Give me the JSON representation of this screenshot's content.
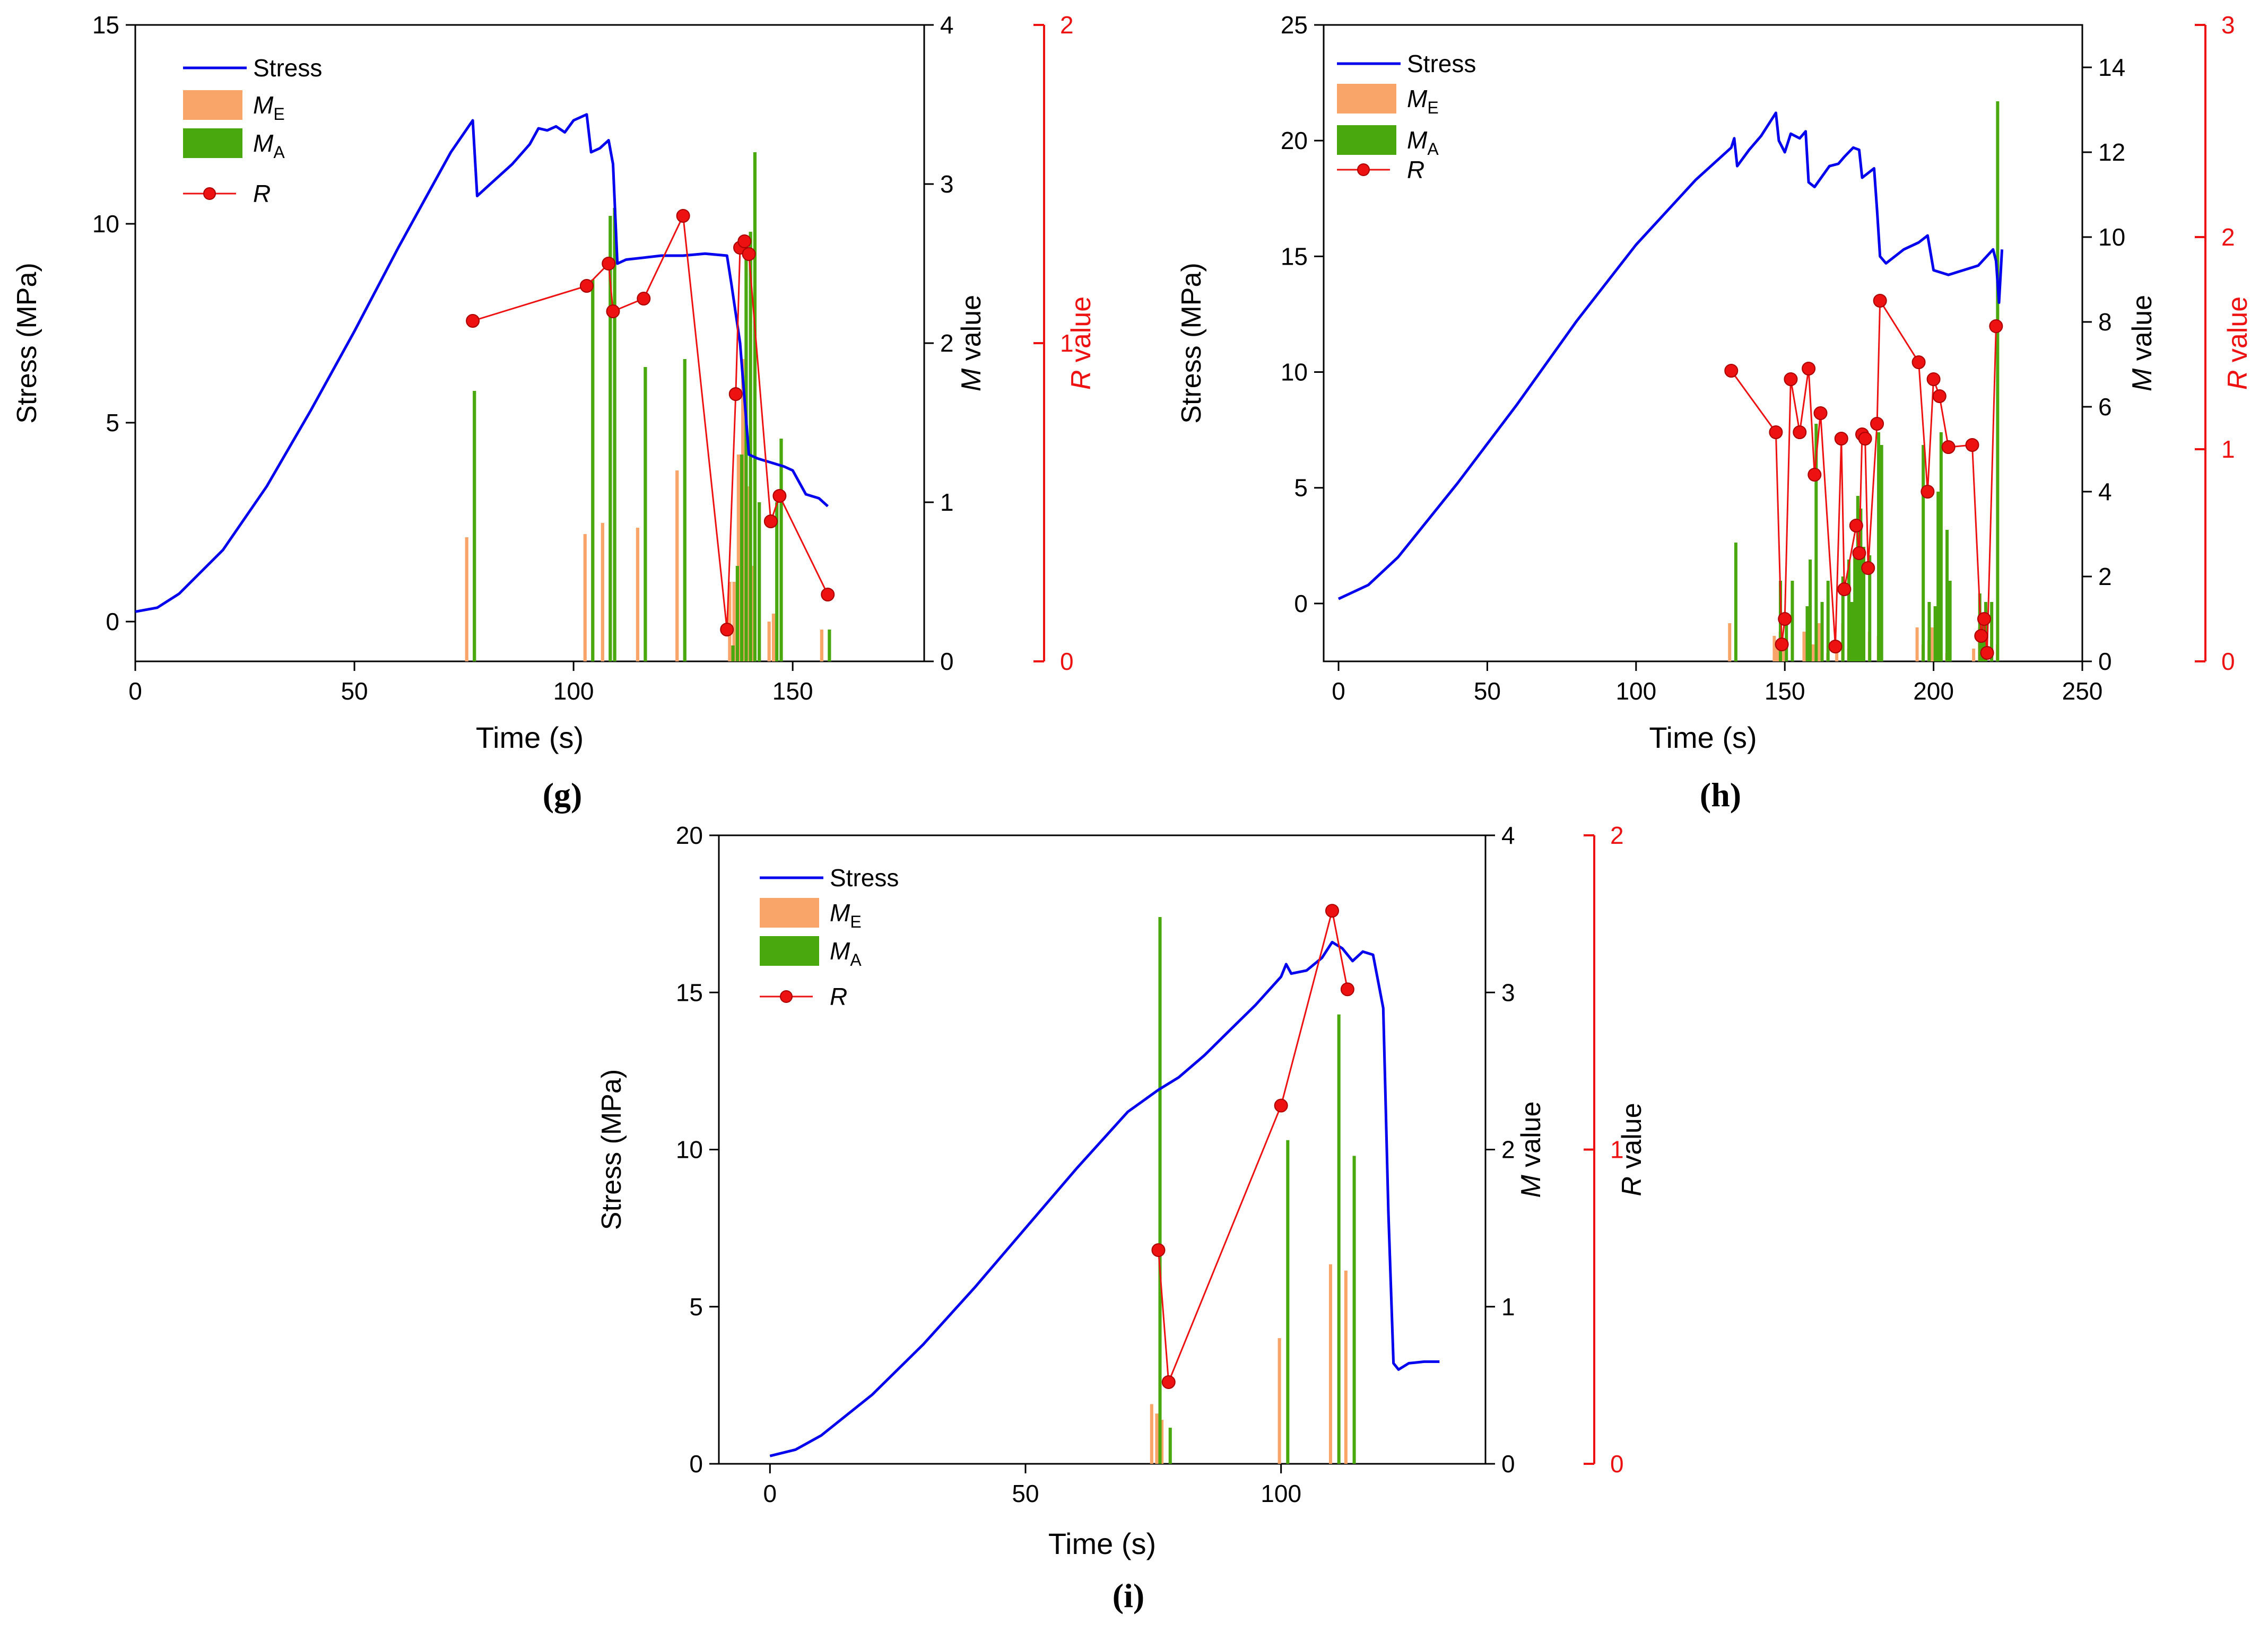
{
  "colors": {
    "stress": "#0000ee",
    "me": "#f9a56a",
    "ma": "#4aa80f",
    "r": "#ee1111",
    "axis": "#000000"
  },
  "chart_data": [
    {
      "type": "bar",
      "panel_label": "(g)",
      "xlabel": "Time (s)",
      "ylabel_left": "Stress (MPa)",
      "ylabel_m_prefix": "M",
      "ylabel_m_suffix": " value",
      "ylabel_r_prefix": "R",
      "ylabel_r_suffix": " value",
      "xlim": [
        0,
        180
      ],
      "ylim_stress": [
        -1,
        15
      ],
      "ylim_m": [
        0,
        4
      ],
      "ylim_r": [
        0,
        2
      ],
      "xticks": [
        0,
        50,
        100,
        150
      ],
      "yticks_stress": [
        0,
        5,
        10,
        15
      ],
      "yticks_m": [
        0,
        1,
        2,
        3,
        4
      ],
      "yticks_r": [
        0,
        1,
        2
      ],
      "legend": {
        "stress": "Stress",
        "me_main": "M",
        "me_sub": "E",
        "ma_main": "M",
        "ma_sub": "A",
        "r": "R"
      },
      "stress": [
        [
          0,
          0.25
        ],
        [
          5,
          0.35
        ],
        [
          10,
          0.7
        ],
        [
          20,
          1.8
        ],
        [
          30,
          3.4
        ],
        [
          40,
          5.3
        ],
        [
          50,
          7.3
        ],
        [
          60,
          9.4
        ],
        [
          66,
          10.6
        ],
        [
          72,
          11.8
        ],
        [
          77,
          12.6
        ],
        [
          78,
          10.7
        ],
        [
          82,
          11.1
        ],
        [
          86,
          11.5
        ],
        [
          90,
          12.0
        ],
        [
          92,
          12.4
        ],
        [
          94,
          12.35
        ],
        [
          96,
          12.45
        ],
        [
          98,
          12.3
        ],
        [
          100,
          12.6
        ],
        [
          102,
          12.7
        ],
        [
          103,
          12.75
        ],
        [
          104,
          11.8
        ],
        [
          106,
          11.9
        ],
        [
          108,
          12.1
        ],
        [
          109,
          11.5
        ],
        [
          110,
          9.0
        ],
        [
          112,
          9.1
        ],
        [
          116,
          9.15
        ],
        [
          120,
          9.2
        ],
        [
          125,
          9.2
        ],
        [
          130,
          9.25
        ],
        [
          135,
          9.2
        ],
        [
          136,
          8.5
        ],
        [
          138,
          7.0
        ],
        [
          140,
          4.2
        ],
        [
          142,
          4.1
        ],
        [
          145,
          4.0
        ],
        [
          148,
          3.9
        ],
        [
          150,
          3.8
        ],
        [
          153,
          3.2
        ],
        [
          156,
          3.1
        ],
        [
          158,
          2.9
        ]
      ],
      "me": [
        [
          76,
          0.78
        ],
        [
          103,
          0.8
        ],
        [
          107,
          0.87
        ],
        [
          115,
          0.84
        ],
        [
          124,
          1.2
        ],
        [
          136,
          0.5
        ],
        [
          137,
          0.5
        ],
        [
          138,
          1.3
        ],
        [
          139,
          1.9
        ],
        [
          140,
          1.1
        ],
        [
          141,
          0.6
        ],
        [
          145,
          0.25
        ],
        [
          146,
          0.3
        ],
        [
          157,
          0.2
        ]
      ],
      "ma": [
        [
          77,
          1.7
        ],
        [
          104,
          2.4
        ],
        [
          108,
          2.8
        ],
        [
          109,
          2.85
        ],
        [
          116,
          1.85
        ],
        [
          125,
          1.9
        ],
        [
          136,
          0.1
        ],
        [
          137,
          0.6
        ],
        [
          138,
          1.3
        ],
        [
          139,
          2.6
        ],
        [
          140,
          2.7
        ],
        [
          141,
          3.2
        ],
        [
          142,
          1.0
        ],
        [
          146,
          1.0
        ],
        [
          147,
          1.4
        ],
        [
          158,
          0.2
        ]
      ],
      "r": [
        [
          77,
          1.07
        ],
        [
          103,
          1.18
        ],
        [
          108,
          1.25
        ],
        [
          109,
          1.1
        ],
        [
          116,
          1.14
        ],
        [
          125,
          1.4
        ],
        [
          135,
          0.1
        ],
        [
          137,
          0.84
        ],
        [
          138,
          1.3
        ],
        [
          139,
          1.32
        ],
        [
          140,
          1.28
        ],
        [
          145,
          0.44
        ],
        [
          147,
          0.52
        ],
        [
          158,
          0.21
        ]
      ]
    },
    {
      "type": "bar",
      "panel_label": "(h)",
      "xlabel": "Time (s)",
      "ylabel_left": "Stress (MPa)",
      "ylabel_m_prefix": "M",
      "ylabel_m_suffix": " value",
      "ylabel_r_prefix": "R",
      "ylabel_r_suffix": " value",
      "xlim": [
        -5,
        250
      ],
      "ylim_stress": [
        -2.5,
        25
      ],
      "ylim_m": [
        0,
        15
      ],
      "ylim_r": [
        0,
        3
      ],
      "xticks": [
        0,
        50,
        100,
        150,
        200,
        250
      ],
      "yticks_stress": [
        0,
        5,
        10,
        15,
        20,
        25
      ],
      "yticks_m": [
        0,
        2,
        4,
        6,
        8,
        10,
        12,
        14
      ],
      "yticks_r": [
        0,
        1,
        2,
        3
      ],
      "legend": {
        "stress": "Stress",
        "me_main": "M",
        "me_sub": "E",
        "ma_main": "M",
        "ma_sub": "A",
        "r": "R"
      },
      "stress": [
        [
          0,
          0.2
        ],
        [
          10,
          0.8
        ],
        [
          20,
          2.0
        ],
        [
          40,
          5.2
        ],
        [
          60,
          8.6
        ],
        [
          80,
          12.2
        ],
        [
          100,
          15.5
        ],
        [
          120,
          18.3
        ],
        [
          132,
          19.7
        ],
        [
          133,
          20.1
        ],
        [
          134,
          18.9
        ],
        [
          138,
          19.6
        ],
        [
          142,
          20.2
        ],
        [
          145,
          20.8
        ],
        [
          147,
          21.2
        ],
        [
          148,
          20.0
        ],
        [
          150,
          19.5
        ],
        [
          152,
          20.3
        ],
        [
          155,
          20.1
        ],
        [
          157,
          20.4
        ],
        [
          158,
          18.2
        ],
        [
          160,
          18.0
        ],
        [
          165,
          18.9
        ],
        [
          168,
          19.0
        ],
        [
          170,
          19.3
        ],
        [
          173,
          19.7
        ],
        [
          175,
          19.6
        ],
        [
          176,
          18.4
        ],
        [
          178,
          18.6
        ],
        [
          180,
          18.8
        ],
        [
          181,
          17.0
        ],
        [
          182,
          15.0
        ],
        [
          184,
          14.7
        ],
        [
          190,
          15.3
        ],
        [
          195,
          15.6
        ],
        [
          198,
          15.9
        ],
        [
          200,
          14.4
        ],
        [
          205,
          14.2
        ],
        [
          210,
          14.4
        ],
        [
          215,
          14.6
        ],
        [
          220,
          15.3
        ],
        [
          221,
          14.8
        ],
        [
          222,
          13.0
        ],
        [
          223,
          15.3
        ]
      ],
      "me": [
        [
          132,
          0.9
        ],
        [
          147,
          0.6
        ],
        [
          148,
          0.4
        ],
        [
          149,
          0.7
        ],
        [
          150,
          0.3
        ],
        [
          157,
          0.7
        ],
        [
          159,
          0.5
        ],
        [
          160,
          0.4
        ],
        [
          162,
          0.9
        ],
        [
          165,
          0.2
        ],
        [
          168,
          0.4
        ],
        [
          170,
          0.9
        ],
        [
          172,
          0.3
        ],
        [
          174,
          0.5
        ],
        [
          176,
          0.8
        ],
        [
          177,
          0.4
        ],
        [
          179,
          0.7
        ],
        [
          182,
          0.6
        ],
        [
          195,
          0.8
        ],
        [
          197,
          0.4
        ],
        [
          199,
          0.5
        ],
        [
          200,
          0.8
        ],
        [
          202,
          0.6
        ],
        [
          205,
          0.2
        ],
        [
          214,
          0.3
        ],
        [
          216,
          0.8
        ],
        [
          217,
          0.4
        ],
        [
          218,
          0.6
        ],
        [
          220,
          0.5
        ],
        [
          222,
          0.4
        ]
      ],
      "ma": [
        [
          133,
          2.8
        ],
        [
          148,
          1.9
        ],
        [
          150,
          1.0
        ],
        [
          152,
          1.9
        ],
        [
          157,
          1.3
        ],
        [
          158,
          2.4
        ],
        [
          160,
          5.6
        ],
        [
          162,
          1.4
        ],
        [
          164,
          1.9
        ],
        [
          169,
          2.0
        ],
        [
          171,
          2.4
        ],
        [
          172,
          1.4
        ],
        [
          173,
          2.5
        ],
        [
          174,
          3.9
        ],
        [
          175,
          3.6
        ],
        [
          176,
          2.7
        ],
        [
          178,
          2.5
        ],
        [
          181,
          5.4
        ],
        [
          182,
          5.1
        ],
        [
          196,
          5.1
        ],
        [
          198,
          1.4
        ],
        [
          200,
          1.3
        ],
        [
          201,
          4.0
        ],
        [
          202,
          5.4
        ],
        [
          204,
          3.1
        ],
        [
          205,
          1.9
        ],
        [
          215,
          1.6
        ],
        [
          216,
          1.0
        ],
        [
          217,
          1.4
        ],
        [
          219,
          1.4
        ],
        [
          221,
          13.2
        ]
      ],
      "r": [
        [
          132,
          1.37
        ],
        [
          147,
          1.08
        ],
        [
          149,
          0.08
        ],
        [
          150,
          0.2
        ],
        [
          152,
          1.33
        ],
        [
          155,
          1.08
        ],
        [
          158,
          1.38
        ],
        [
          160,
          0.88
        ],
        [
          162,
          1.17
        ],
        [
          167,
          0.07
        ],
        [
          169,
          1.05
        ],
        [
          170,
          0.34
        ],
        [
          174,
          0.64
        ],
        [
          175,
          0.51
        ],
        [
          176,
          1.07
        ],
        [
          177,
          1.05
        ],
        [
          178,
          0.44
        ],
        [
          181,
          1.12
        ],
        [
          182,
          1.7
        ],
        [
          195,
          1.41
        ],
        [
          198,
          0.8
        ],
        [
          200,
          1.33
        ],
        [
          202,
          1.25
        ],
        [
          205,
          1.01
        ],
        [
          213,
          1.02
        ],
        [
          216,
          0.12
        ],
        [
          217,
          0.2
        ],
        [
          218,
          0.04
        ],
        [
          221,
          1.58
        ]
      ]
    },
    {
      "type": "bar",
      "panel_label": "(i)",
      "xlabel": "Time (s)",
      "ylabel_left": "Stress (MPa)",
      "ylabel_m_prefix": "M",
      "ylabel_m_suffix": " value",
      "ylabel_r_prefix": "R",
      "ylabel_r_suffix": " value",
      "xlim": [
        -10,
        140
      ],
      "ylim_stress": [
        0,
        20
      ],
      "ylim_m": [
        0,
        4
      ],
      "ylim_r": [
        0,
        2
      ],
      "xticks": [
        0,
        50,
        100
      ],
      "yticks_stress": [
        0,
        5,
        10,
        15,
        20
      ],
      "yticks_m": [
        0,
        1,
        2,
        3,
        4
      ],
      "yticks_r": [
        0,
        1,
        2
      ],
      "legend": {
        "stress": "Stress",
        "me_main": "M",
        "me_sub": "E",
        "ma_main": "M",
        "ma_sub": "A",
        "r": "R"
      },
      "stress": [
        [
          0,
          0.25
        ],
        [
          5,
          0.45
        ],
        [
          10,
          0.9
        ],
        [
          20,
          2.2
        ],
        [
          30,
          3.8
        ],
        [
          40,
          5.6
        ],
        [
          50,
          7.5
        ],
        [
          60,
          9.4
        ],
        [
          70,
          11.2
        ],
        [
          76,
          11.9
        ],
        [
          80,
          12.3
        ],
        [
          85,
          13.0
        ],
        [
          90,
          13.8
        ],
        [
          95,
          14.6
        ],
        [
          100,
          15.5
        ],
        [
          101,
          15.9
        ],
        [
          102,
          15.6
        ],
        [
          105,
          15.7
        ],
        [
          108,
          16.1
        ],
        [
          110,
          16.6
        ],
        [
          112,
          16.4
        ],
        [
          114,
          16.0
        ],
        [
          116,
          16.3
        ],
        [
          118,
          16.2
        ],
        [
          120,
          14.5
        ],
        [
          121,
          8.0
        ],
        [
          122,
          3.2
        ],
        [
          123,
          3.0
        ],
        [
          125,
          3.2
        ],
        [
          128,
          3.25
        ],
        [
          131,
          3.25
        ]
      ],
      "me": [
        [
          75,
          0.38
        ],
        [
          76,
          0.32
        ],
        [
          77,
          0.28
        ],
        [
          100,
          0.8
        ],
        [
          110,
          1.27
        ],
        [
          113,
          1.23
        ]
      ],
      "ma": [
        [
          76,
          3.48
        ],
        [
          78,
          0.23
        ],
        [
          101,
          2.06
        ],
        [
          111,
          2.86
        ],
        [
          114,
          1.96
        ]
      ],
      "r": [
        [
          76,
          0.68
        ],
        [
          78,
          0.26
        ],
        [
          100,
          1.14
        ],
        [
          110,
          1.76
        ],
        [
          113,
          1.51
        ]
      ]
    }
  ]
}
